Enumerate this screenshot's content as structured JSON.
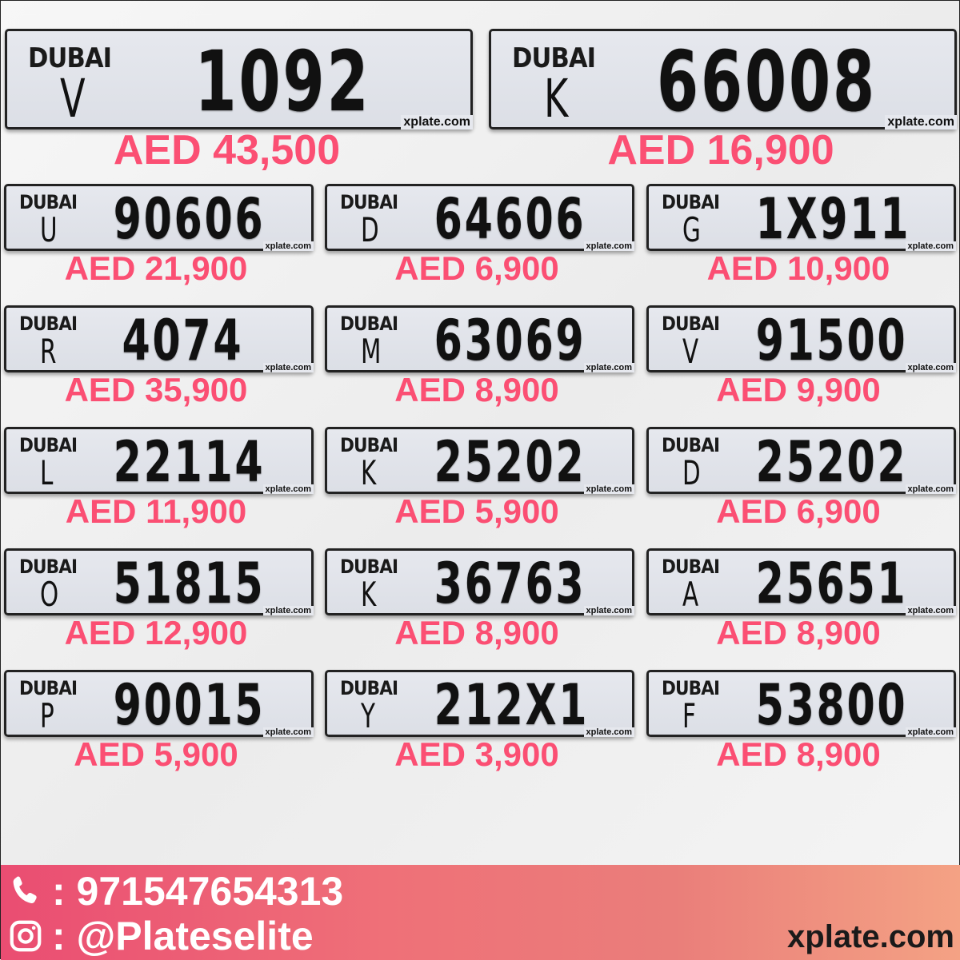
{
  "plate_logo": "DUBAI",
  "watermark": "xplate.com",
  "featured": [
    {
      "letter": "V",
      "number": "1092",
      "price": "AED 43,500"
    },
    {
      "letter": "K",
      "number": "66008",
      "price": "AED 16,900"
    }
  ],
  "plates": [
    {
      "letter": "U",
      "number": "90606",
      "price": "AED 21,900"
    },
    {
      "letter": "D",
      "number": "64606",
      "price": "AED 6,900"
    },
    {
      "letter": "G",
      "number": "1X911",
      "price": "AED 10,900"
    },
    {
      "letter": "R",
      "number": "4074",
      "price": "AED 35,900"
    },
    {
      "letter": "M",
      "number": "63069",
      "price": "AED 8,900"
    },
    {
      "letter": "V",
      "number": "91500",
      "price": "AED 9,900"
    },
    {
      "letter": "L",
      "number": "22114",
      "price": "AED 11,900"
    },
    {
      "letter": "K",
      "number": "25202",
      "price": "AED 5,900"
    },
    {
      "letter": "D",
      "number": "25202",
      "price": "AED 6,900"
    },
    {
      "letter": "O",
      "number": "51815",
      "price": "AED 12,900"
    },
    {
      "letter": "K",
      "number": "36763",
      "price": "AED 8,900"
    },
    {
      "letter": "A",
      "number": "25651",
      "price": "AED 8,900"
    },
    {
      "letter": "P",
      "number": "90015",
      "price": "AED 5,900"
    },
    {
      "letter": "Y",
      "number": "212X1",
      "price": "AED 3,900"
    },
    {
      "letter": "F",
      "number": "53800",
      "price": "AED 8,900"
    }
  ],
  "footer": {
    "phone": ": 971547654313",
    "instagram": ": @Plateselite",
    "site": "xplate.com",
    "phone_icon": "phone-icon",
    "instagram_icon": "instagram-icon"
  },
  "colors": {
    "price": "#fb4f73",
    "footer_start": "#ea4d72",
    "footer_end": "#f4a284"
  }
}
